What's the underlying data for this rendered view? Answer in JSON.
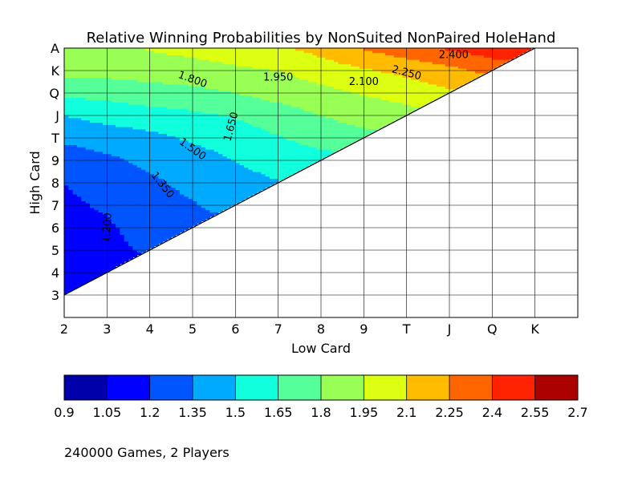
{
  "chart_data": {
    "type": "heatmap",
    "title": "Relative Winning Probabilities by NonSuited NonPaired HoleHand",
    "xlabel": "Low Card",
    "ylabel": "High Card",
    "x_ticks": [
      "2",
      "3",
      "4",
      "5",
      "6",
      "7",
      "8",
      "9",
      "T",
      "J",
      "Q",
      "K"
    ],
    "y_ticks": [
      "3",
      "4",
      "5",
      "6",
      "7",
      "8",
      "9",
      "T",
      "J",
      "Q",
      "K",
      "A"
    ],
    "xlim": [
      2,
      14
    ],
    "ylim": [
      2,
      14
    ],
    "grid": true,
    "low_card_values": [
      2,
      3,
      4,
      5,
      6,
      7,
      8,
      9,
      10,
      11,
      12,
      13
    ],
    "high_card_values": [
      3,
      4,
      5,
      6,
      7,
      8,
      9,
      10,
      11,
      12,
      13,
      14
    ],
    "z_note": "null where low card >= high card",
    "z": [
      [
        1.06,
        null,
        null,
        null,
        null,
        null,
        null,
        null,
        null,
        null,
        null,
        null
      ],
      [
        1.1,
        1.14,
        null,
        null,
        null,
        null,
        null,
        null,
        null,
        null,
        null,
        null
      ],
      [
        1.12,
        1.16,
        1.22,
        null,
        null,
        null,
        null,
        null,
        null,
        null,
        null,
        null
      ],
      [
        1.14,
        1.18,
        1.26,
        1.3,
        null,
        null,
        null,
        null,
        null,
        null,
        null,
        null
      ],
      [
        1.17,
        1.22,
        1.3,
        1.34,
        1.4,
        null,
        null,
        null,
        null,
        null,
        null,
        null
      ],
      [
        1.2,
        1.26,
        1.33,
        1.38,
        1.45,
        1.49,
        null,
        null,
        null,
        null,
        null,
        null
      ],
      [
        1.26,
        1.32,
        1.38,
        1.43,
        1.5,
        1.56,
        1.6,
        null,
        null,
        null,
        null,
        null
      ],
      [
        1.38,
        1.42,
        1.46,
        1.52,
        1.58,
        1.64,
        1.7,
        1.75,
        null,
        null,
        null,
        null
      ],
      [
        1.5,
        1.55,
        1.58,
        1.62,
        1.66,
        1.72,
        1.8,
        1.86,
        1.9,
        null,
        null,
        null
      ],
      [
        1.68,
        1.7,
        1.74,
        1.76,
        1.8,
        1.86,
        1.9,
        1.96,
        2.0,
        2.08,
        null,
        null
      ],
      [
        1.84,
        1.85,
        1.86,
        1.88,
        1.92,
        1.95,
        2.02,
        2.08,
        2.14,
        2.2,
        2.3,
        null
      ],
      [
        1.9,
        1.92,
        1.96,
        2.0,
        2.04,
        2.08,
        2.15,
        2.26,
        2.34,
        2.42,
        2.48,
        2.56
      ]
    ],
    "colorbar": {
      "levels": [
        0.9,
        1.05,
        1.2,
        1.35,
        1.5,
        1.65,
        1.8,
        1.95,
        2.1,
        2.25,
        2.4,
        2.55,
        2.7
      ],
      "tick_labels": [
        "0.9",
        "1.05",
        "1.2",
        "1.35",
        "1.5",
        "1.65",
        "1.8",
        "1.95",
        "2.1",
        "2.25",
        "2.4",
        "2.55",
        "2.7"
      ],
      "colors": [
        "#0000aa",
        "#0000ff",
        "#0055ff",
        "#00aaff",
        "#11ffdd",
        "#55ff99",
        "#99ff55",
        "#ddff11",
        "#ffbb00",
        "#ff6600",
        "#ff2200",
        "#aa0000"
      ]
    },
    "contour_labels": [
      "1.200",
      "1.350",
      "1.500",
      "1.650",
      "1.800",
      "1.950",
      "2.100",
      "2.250",
      "2.400"
    ],
    "footnote": "240000 Games,  2 Players"
  }
}
